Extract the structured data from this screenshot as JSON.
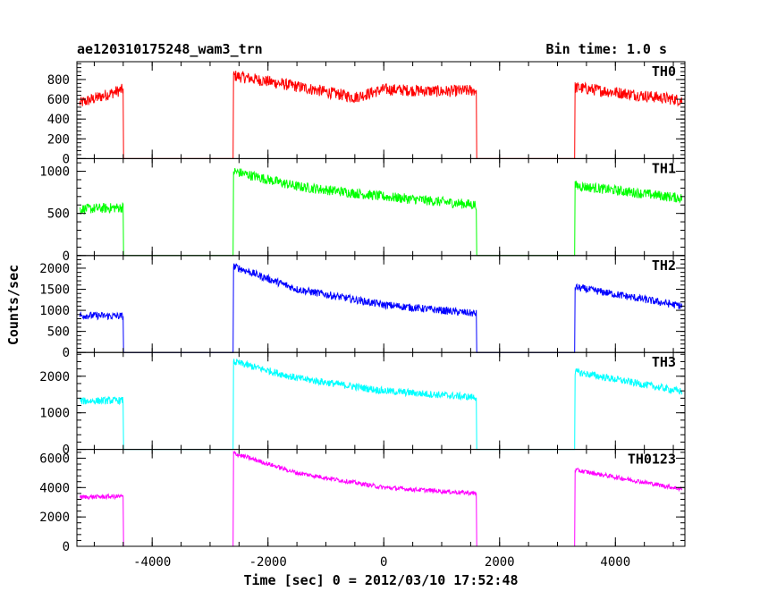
{
  "chart_data": {
    "type": "line",
    "title": "ae120310175248_wam3_trn",
    "subtitle": "Bin time: 1.0 s",
    "xlabel": "Time [sec] 0 = 2012/03/10 17:52:48",
    "ylabel": "Counts/sec",
    "xlim": [
      -5300,
      5200
    ],
    "x_ticks": [
      -4000,
      -2000,
      0,
      2000,
      4000
    ],
    "x_tick_labels": [
      "-4000",
      "-2000",
      "0",
      "2000",
      "4000"
    ],
    "panels": [
      {
        "name": "TH0",
        "color": "#ff0000",
        "ylim": [
          0,
          980
        ],
        "y_ticks": [
          0,
          200,
          400,
          600,
          800
        ],
        "y_tick_labels": [
          "0",
          "200",
          "400",
          "600",
          "800"
        ],
        "noise": 60,
        "x": [
          -5250,
          -4500,
          -4499,
          -2600,
          -2599,
          -1500,
          -500,
          0,
          1000,
          1600,
          1601,
          3300,
          3301,
          5150
        ],
        "y": [
          560,
          700,
          0,
          0,
          840,
          730,
          620,
          700,
          680,
          690,
          0,
          0,
          720,
          590
        ]
      },
      {
        "name": "TH1",
        "color": "#00ff00",
        "ylim": [
          0,
          1150
        ],
        "y_ticks": [
          0,
          500,
          1000
        ],
        "y_tick_labels": [
          "0",
          "500",
          "1000"
        ],
        "noise": 60,
        "x": [
          -5250,
          -4500,
          -4499,
          -2600,
          -2599,
          -1500,
          0,
          1600,
          1601,
          3300,
          3301,
          5150
        ],
        "y": [
          550,
          570,
          0,
          0,
          1000,
          820,
          700,
          600,
          0,
          0,
          830,
          680
        ]
      },
      {
        "name": "TH2",
        "color": "#0000ff",
        "ylim": [
          0,
          2300
        ],
        "y_ticks": [
          0,
          500,
          1000,
          1500,
          2000
        ],
        "y_tick_labels": [
          "0",
          "500",
          "1000",
          "1500",
          "2000"
        ],
        "noise": 90,
        "x": [
          -5250,
          -4500,
          -4499,
          -2600,
          -2599,
          -1500,
          0,
          1600,
          1601,
          3300,
          3301,
          5150
        ],
        "y": [
          880,
          860,
          0,
          0,
          2050,
          1500,
          1130,
          920,
          0,
          0,
          1550,
          1100
        ]
      },
      {
        "name": "TH3",
        "color": "#00ffff",
        "ylim": [
          0,
          2650
        ],
        "y_ticks": [
          0,
          1000,
          2000
        ],
        "y_tick_labels": [
          "0",
          "1000",
          "2000"
        ],
        "noise": 100,
        "x": [
          -5250,
          -4500,
          -4499,
          -2600,
          -2599,
          -1500,
          0,
          1600,
          1601,
          3300,
          3301,
          5150
        ],
        "y": [
          1320,
          1340,
          0,
          0,
          2400,
          1950,
          1600,
          1420,
          0,
          0,
          2120,
          1580
        ]
      },
      {
        "name": "TH0123",
        "color": "#ff00ff",
        "ylim": [
          0,
          6600
        ],
        "y_ticks": [
          0,
          2000,
          4000,
          6000
        ],
        "y_tick_labels": [
          "0",
          "2000",
          "4000",
          "6000"
        ],
        "noise": 150,
        "x": [
          -5250,
          -4500,
          -4499,
          -2600,
          -2599,
          -1500,
          0,
          1600,
          1601,
          3300,
          3301,
          5150
        ],
        "y": [
          3350,
          3400,
          0,
          0,
          6350,
          5000,
          4000,
          3600,
          0,
          0,
          5200,
          3900
        ]
      }
    ]
  }
}
